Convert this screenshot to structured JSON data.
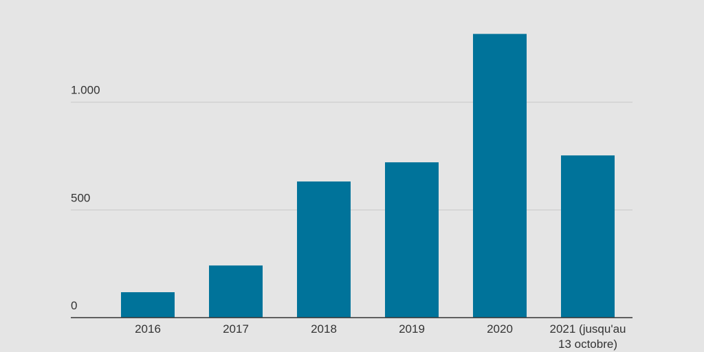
{
  "chart_data": {
    "type": "bar",
    "categories": [
      "2016",
      "2017",
      "2018",
      "2019",
      "2020",
      "2021 (jusqu'au 13 octobre)"
    ],
    "values": [
      118,
      242,
      632,
      721,
      1317,
      753
    ],
    "color": "#00739a",
    "ylim": [
      0,
      1350
    ],
    "yticks": [
      0,
      500,
      {
        "value": 1000,
        "label": "1.000"
      }
    ],
    "grid": true
  }
}
